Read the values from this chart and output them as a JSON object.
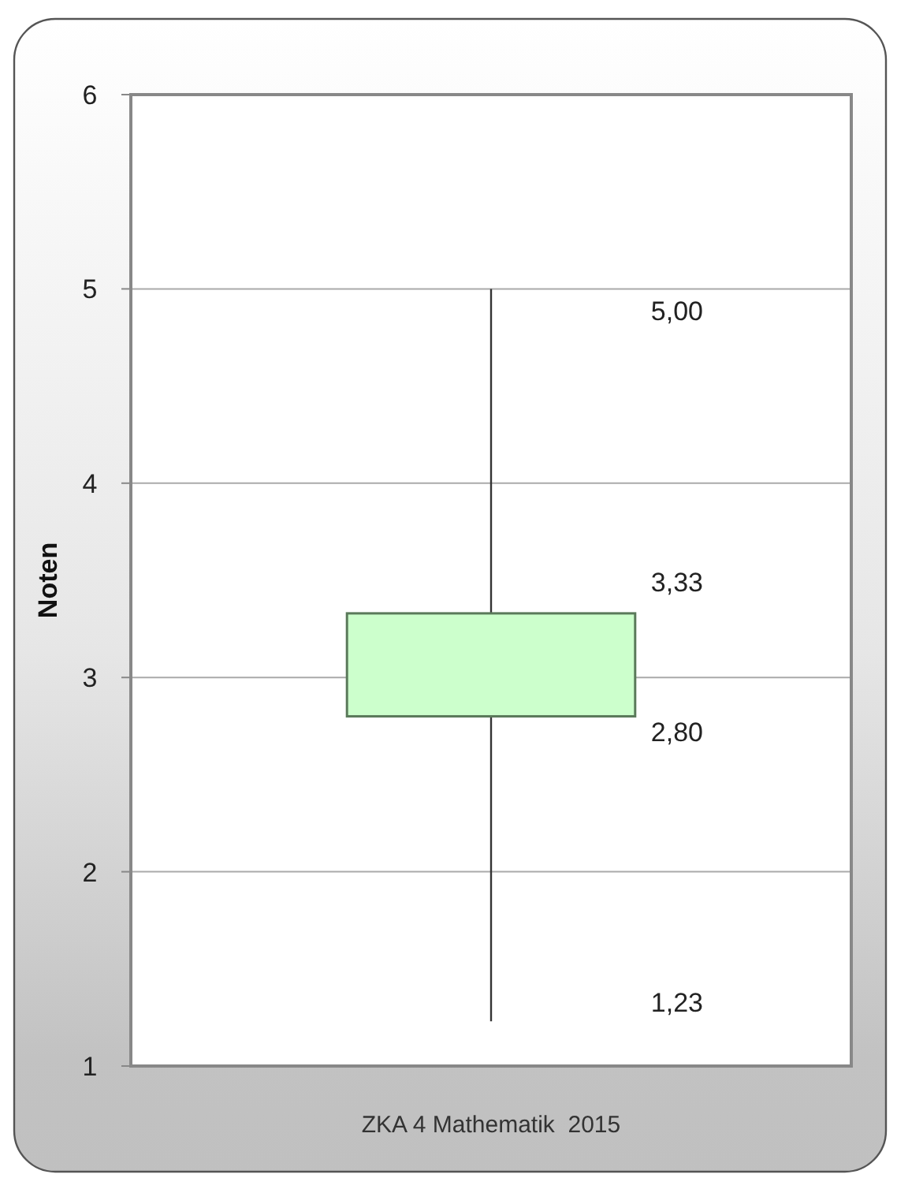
{
  "chart_data": {
    "type": "box",
    "categories": [
      "ZKA 4 Mathematik  2015"
    ],
    "ylabel": "Noten",
    "ylim": [
      1,
      6
    ],
    "yticks": [
      1,
      2,
      3,
      4,
      5,
      6
    ],
    "grid": "y",
    "annotations": [
      "1,23",
      "2,80",
      "3,33",
      "5,00"
    ],
    "color": "#ccffcc",
    "boxes": [
      {
        "low": 1.23,
        "q1": 2.8,
        "q3": 3.33,
        "high": 5.0
      }
    ]
  }
}
